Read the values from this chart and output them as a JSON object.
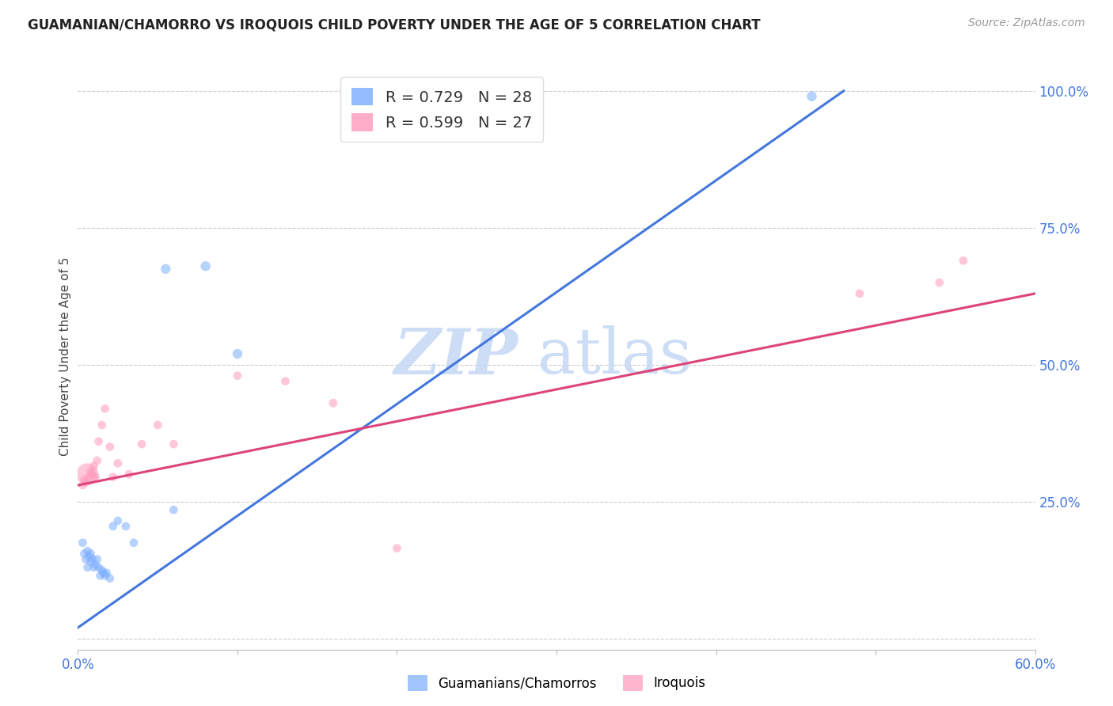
{
  "title": "GUAMANIAN/CHAMORRO VS IROQUOIS CHILD POVERTY UNDER THE AGE OF 5 CORRELATION CHART",
  "source": "Source: ZipAtlas.com",
  "ylabel": "Child Poverty Under the Age of 5",
  "xlim": [
    0.0,
    0.6
  ],
  "ylim": [
    -0.02,
    1.05
  ],
  "xticks": [
    0.0,
    0.1,
    0.2,
    0.3,
    0.4,
    0.5,
    0.6
  ],
  "xticklabels": [
    "0.0%",
    "",
    "",
    "",
    "",
    "",
    "60.0%"
  ],
  "yticks_right": [
    0.0,
    0.25,
    0.5,
    0.75,
    1.0
  ],
  "yticklabels_right": [
    "",
    "25.0%",
    "50.0%",
    "75.0%",
    "100.0%"
  ],
  "grid_color": "#cccccc",
  "background_color": "#ffffff",
  "blue_color": "#7aadff",
  "pink_color": "#ff99bb",
  "blue_line_color": "#4477dd",
  "pink_line_color": "#dd4477",
  "R_blue": 0.729,
  "N_blue": 28,
  "R_pink": 0.599,
  "N_pink": 27,
  "legend_label_blue": "Guamanians/Chamorros",
  "legend_label_pink": "Iroquois",
  "watermark_zip": "ZIP",
  "watermark_atlas": "atlas",
  "blue_scatter": [
    [
      0.003,
      0.175
    ],
    [
      0.004,
      0.155
    ],
    [
      0.005,
      0.145
    ],
    [
      0.006,
      0.13
    ],
    [
      0.006,
      0.16
    ],
    [
      0.007,
      0.15
    ],
    [
      0.008,
      0.155
    ],
    [
      0.008,
      0.14
    ],
    [
      0.009,
      0.145
    ],
    [
      0.01,
      0.13
    ],
    [
      0.011,
      0.135
    ],
    [
      0.012,
      0.145
    ],
    [
      0.013,
      0.13
    ],
    [
      0.014,
      0.115
    ],
    [
      0.015,
      0.125
    ],
    [
      0.016,
      0.12
    ],
    [
      0.017,
      0.115
    ],
    [
      0.018,
      0.12
    ],
    [
      0.02,
      0.11
    ],
    [
      0.022,
      0.205
    ],
    [
      0.025,
      0.215
    ],
    [
      0.03,
      0.205
    ],
    [
      0.035,
      0.175
    ],
    [
      0.06,
      0.235
    ],
    [
      0.055,
      0.675
    ],
    [
      0.08,
      0.68
    ],
    [
      0.1,
      0.52
    ],
    [
      0.46,
      0.99
    ]
  ],
  "blue_sizes": [
    60,
    60,
    60,
    60,
    60,
    60,
    60,
    60,
    60,
    60,
    60,
    60,
    60,
    60,
    60,
    60,
    60,
    60,
    60,
    60,
    60,
    60,
    60,
    60,
    80,
    80,
    80,
    80
  ],
  "pink_scatter": [
    [
      0.003,
      0.28
    ],
    [
      0.004,
      0.29
    ],
    [
      0.005,
      0.285
    ],
    [
      0.006,
      0.3
    ],
    [
      0.007,
      0.295
    ],
    [
      0.008,
      0.305
    ],
    [
      0.009,
      0.3
    ],
    [
      0.01,
      0.315
    ],
    [
      0.011,
      0.295
    ],
    [
      0.012,
      0.325
    ],
    [
      0.013,
      0.36
    ],
    [
      0.015,
      0.39
    ],
    [
      0.017,
      0.42
    ],
    [
      0.02,
      0.35
    ],
    [
      0.022,
      0.295
    ],
    [
      0.025,
      0.32
    ],
    [
      0.032,
      0.3
    ],
    [
      0.04,
      0.355
    ],
    [
      0.05,
      0.39
    ],
    [
      0.06,
      0.355
    ],
    [
      0.1,
      0.48
    ],
    [
      0.13,
      0.47
    ],
    [
      0.16,
      0.43
    ],
    [
      0.2,
      0.165
    ],
    [
      0.49,
      0.63
    ],
    [
      0.54,
      0.65
    ],
    [
      0.555,
      0.69
    ]
  ],
  "pink_sizes": [
    60,
    60,
    60,
    400,
    60,
    60,
    60,
    60,
    60,
    60,
    60,
    60,
    60,
    60,
    60,
    60,
    60,
    60,
    60,
    60,
    60,
    60,
    60,
    60,
    60,
    60,
    60
  ],
  "blue_trendline": [
    [
      0.0,
      0.02
    ],
    [
      0.48,
      1.0
    ]
  ],
  "pink_trendline": [
    [
      0.0,
      0.28
    ],
    [
      0.6,
      0.63
    ]
  ]
}
